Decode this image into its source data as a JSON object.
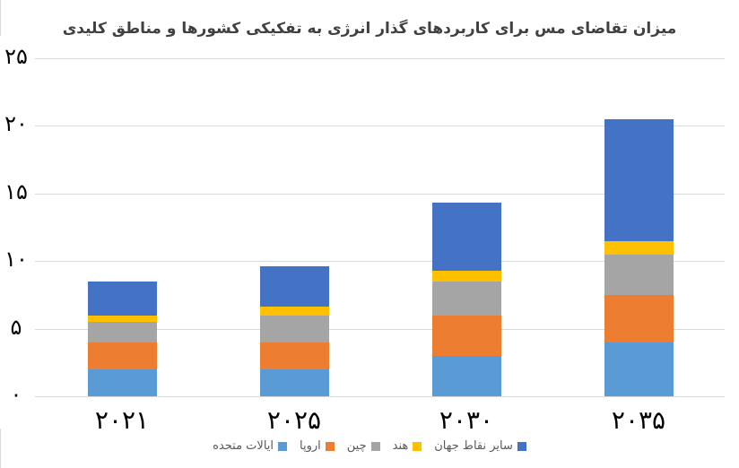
{
  "chart_data": {
    "type": "bar",
    "stacked": true,
    "title": "میزان تقاضای مس برای کاربردهای گذار انرژی به تفکیکی کشورها و مناطق کلیدی",
    "xlabel": "",
    "ylabel": "",
    "ylim": [
      0,
      25
    ],
    "yticks": [
      0,
      5,
      10,
      15,
      20,
      25
    ],
    "ytick_labels": [
      "۰",
      "۵",
      "۱۰",
      "۱۵",
      "۲۰",
      "۲۵"
    ],
    "categories": [
      "2021",
      "2025",
      "2030",
      "2035"
    ],
    "category_labels": [
      "۲۰۲۱",
      "۲۰۲۵",
      "۲۰۳۰",
      "۲۰۳۵"
    ],
    "grid": true,
    "legend_position": "bottom",
    "series": [
      {
        "name": "ایالات متحده",
        "color": "#5B9BD5",
        "values": [
          2.0,
          2.0,
          3.0,
          4.0
        ]
      },
      {
        "name": "اروپا",
        "color": "#ED7D31",
        "values": [
          2.0,
          2.0,
          3.0,
          3.5
        ]
      },
      {
        "name": "چین",
        "color": "#A5A5A5",
        "values": [
          1.5,
          2.0,
          2.5,
          3.0
        ]
      },
      {
        "name": "هند",
        "color": "#FFC000",
        "values": [
          0.5,
          0.6,
          0.8,
          1.0
        ]
      },
      {
        "name": "سایر نقاط جهان",
        "color": "#4472C4",
        "values": [
          2.5,
          3.0,
          5.0,
          9.0
        ]
      }
    ]
  },
  "legend_order": [
    "ایالات متحده",
    "اروپا",
    "چین",
    "هند",
    "سایر نقاط جهان"
  ]
}
